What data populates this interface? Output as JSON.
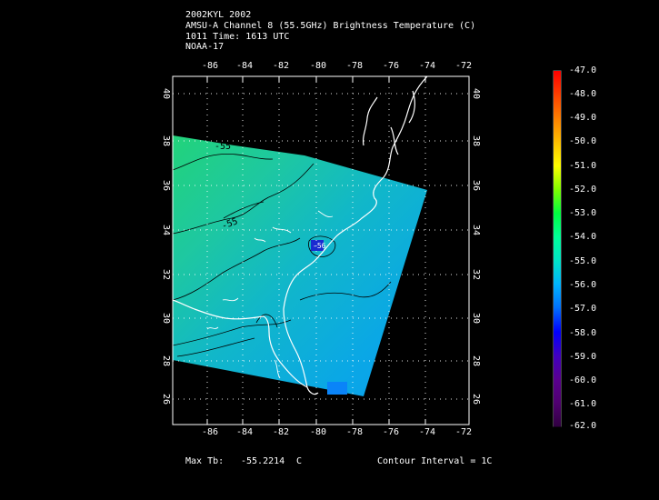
{
  "header": {
    "line1": "2002KYL 2002",
    "line2": "AMSU-A Channel 8 (55.5GHz) Brightness Temperature (C)",
    "line3": "1011 Time: 1613 UTC",
    "line4": "NOAA-17"
  },
  "axes": {
    "lon_ticks": [
      "-86",
      "-84",
      "-82",
      "-80",
      "-78",
      "-76",
      "-74",
      "-72"
    ],
    "lat_ticks": [
      "40",
      "38",
      "36",
      "34",
      "32",
      "30",
      "28",
      "26"
    ]
  },
  "contours": {
    "labels": [
      "-55",
      "-55",
      "-56"
    ]
  },
  "colorbar": {
    "labels": [
      "-47.0",
      "-48.0",
      "-49.0",
      "-50.0",
      "-51.0",
      "-52.0",
      "-53.0",
      "-54.0",
      "-55.0",
      "-56.0",
      "-57.0",
      "-58.0",
      "-59.0",
      "-60.0",
      "-61.0",
      "-62.0"
    ],
    "colors": [
      "#ff0000",
      "#ff4000",
      "#ff8000",
      "#ffbf00",
      "#ffff00",
      "#80ff00",
      "#00ff40",
      "#00ff99",
      "#00e5c8",
      "#00b4ff",
      "#0070ff",
      "#0000ff",
      "#4000c0",
      "#5a0090",
      "#500070",
      "#300040"
    ]
  },
  "footer": {
    "max_label": "Max Tb:",
    "max_value": "-55.2214",
    "max_unit": "C",
    "contour_interval": "Contour Interval = 1C"
  }
}
